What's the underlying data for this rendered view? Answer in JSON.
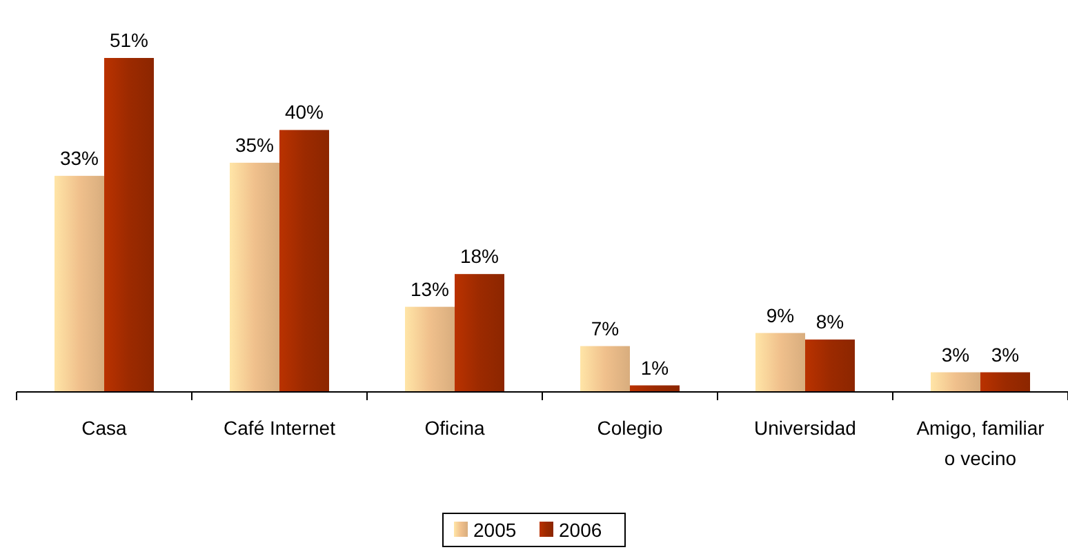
{
  "chart_data": {
    "type": "bar",
    "categories": [
      "Casa",
      "Café Internet",
      "Oficina",
      "Colegio",
      "Universidad",
      "Amigo, familiar o vecino"
    ],
    "series": [
      {
        "name": "2005",
        "color": "#f0c08c",
        "values": [
          33,
          35,
          13,
          7,
          9,
          3
        ],
        "value_labels": [
          "33%",
          "35%",
          "13%",
          "7%",
          "9%",
          "3%"
        ]
      },
      {
        "name": "2006",
        "color": "#9c2a00",
        "values": [
          51,
          40,
          18,
          1,
          8,
          3
        ],
        "value_labels": [
          "51%",
          "40%",
          "18%",
          "1%",
          "8%",
          "3%"
        ]
      }
    ],
    "legend": "bottom",
    "grid": false
  }
}
